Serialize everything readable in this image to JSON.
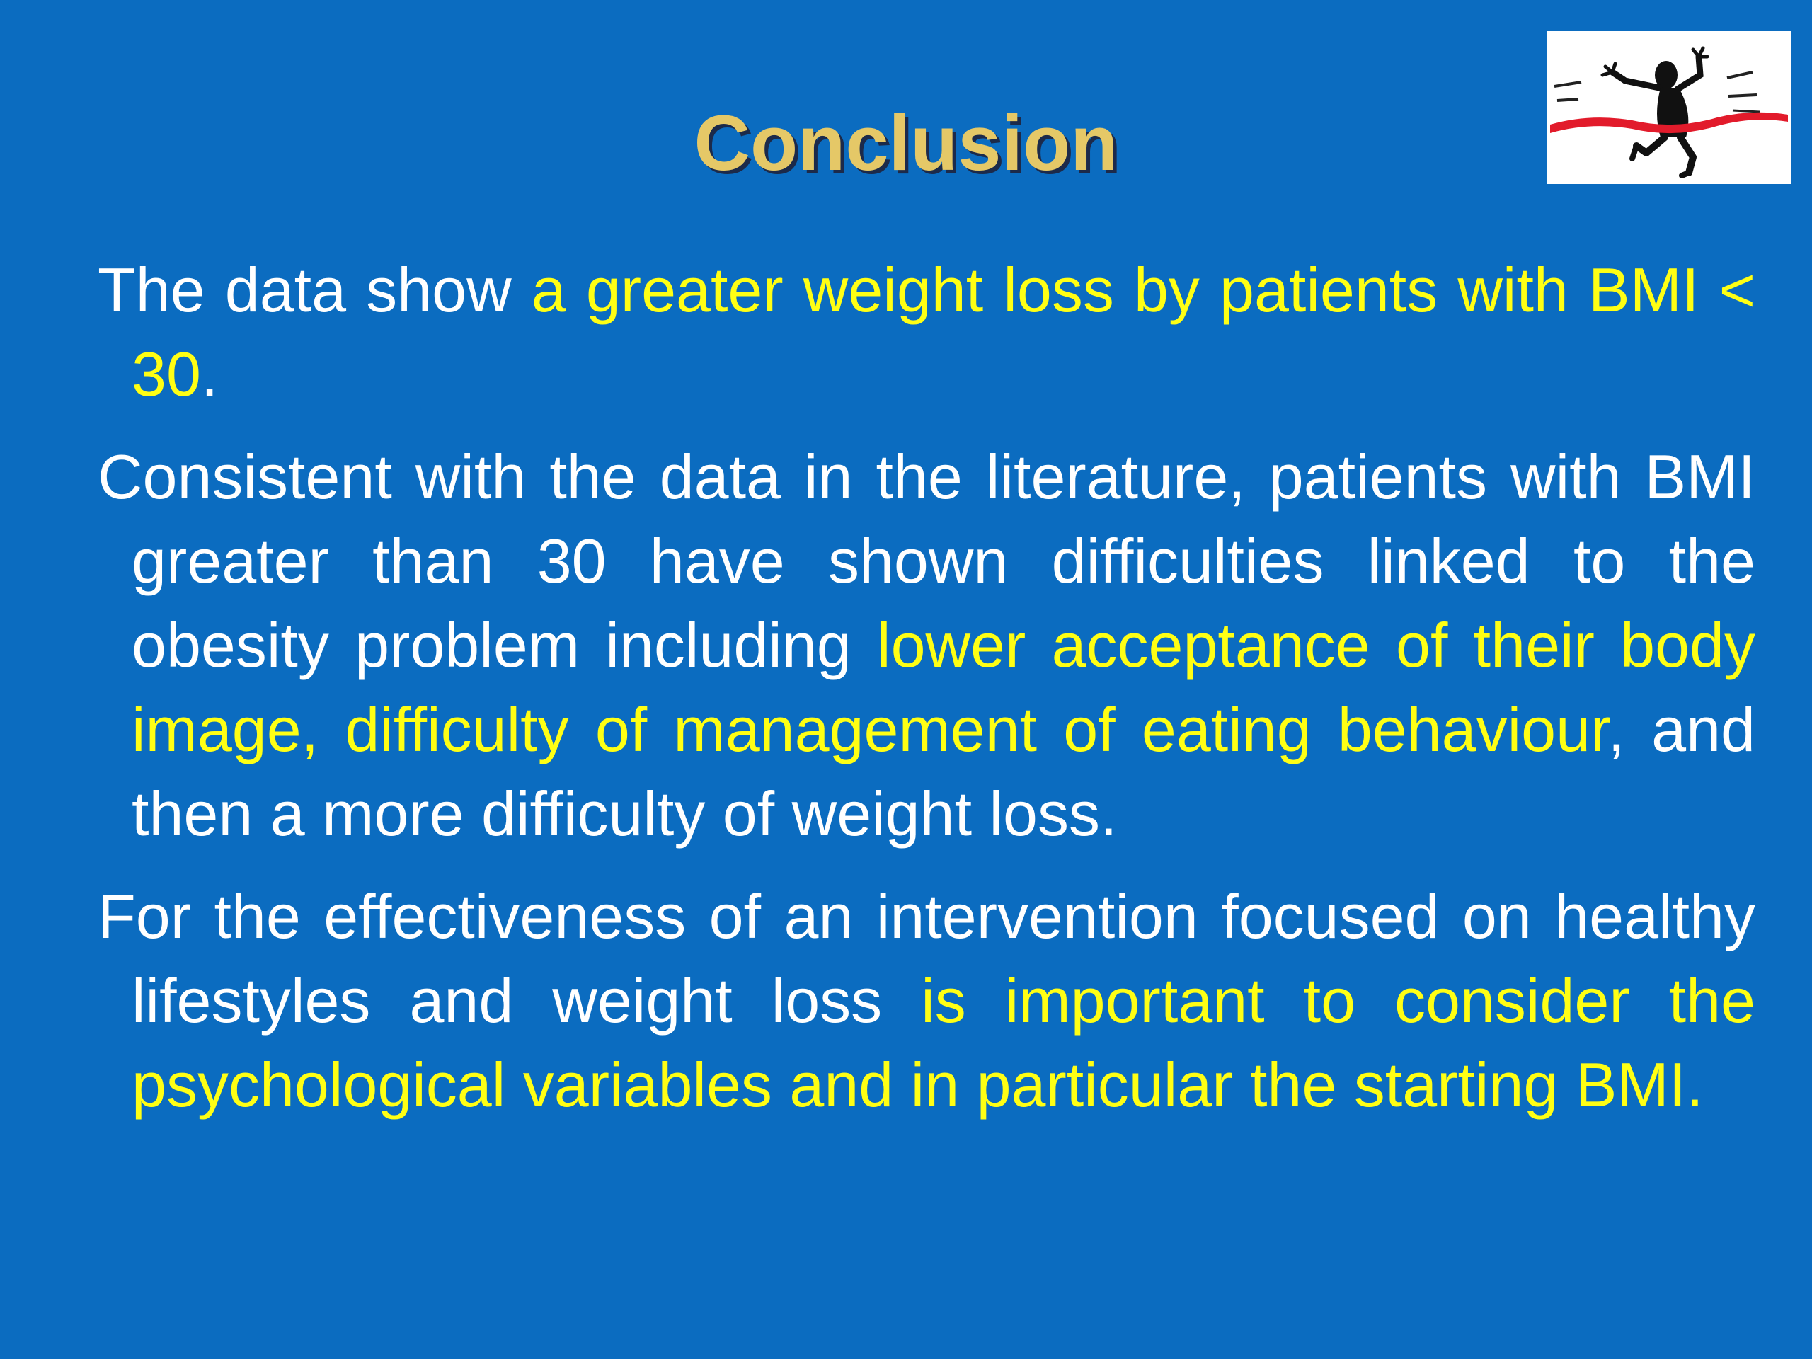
{
  "slide": {
    "title": "Conclusion",
    "logo_icon": "runner-crossing-finish-line-icon",
    "paragraphs": [
      {
        "segments": [
          {
            "text": "The data show ",
            "highlight": false
          },
          {
            "text": "a greater weight loss by patients with BMI < 30",
            "highlight": true
          },
          {
            "text": ".",
            "highlight": false
          }
        ]
      },
      {
        "segments": [
          {
            "text": "Consistent with the data in the literature, patients with BMI greater than 30 have shown difficulties linked to the obesity problem including ",
            "highlight": false
          },
          {
            "text": "lower acceptance of their body image, difficulty of management of eating behaviour",
            "highlight": true
          },
          {
            "text": ", and then a more difficulty of weight loss.",
            "highlight": false
          }
        ]
      },
      {
        "segments": [
          {
            "text": "For the effectiveness of an intervention focused on healthy lifestyles and weight loss ",
            "highlight": false
          },
          {
            "text": "is important to consider the psychological variables and in particular the starting BMI.",
            "highlight": true
          }
        ]
      }
    ]
  },
  "colors": {
    "background": "#0b6cc0",
    "title": "#e5c867",
    "text": "#ffffff",
    "highlight": "#ffff14"
  }
}
